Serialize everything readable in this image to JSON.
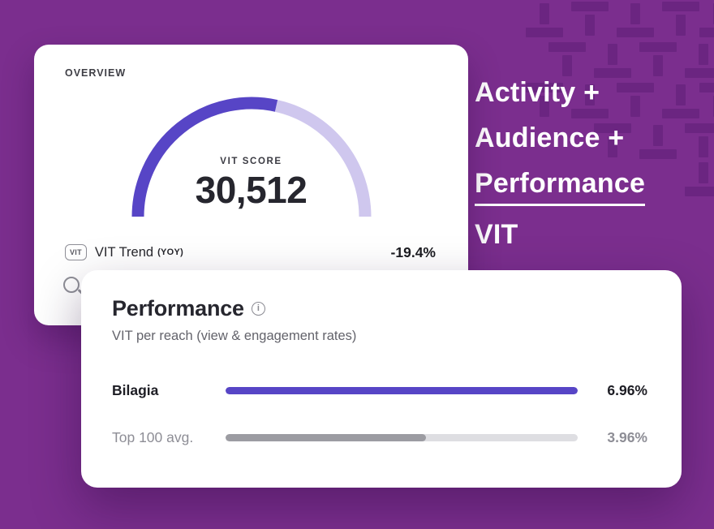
{
  "theme": {
    "background": "#7B2E8E",
    "pattern": "#6B2581",
    "accent_purple": "#5745C6",
    "gauge_rest": "#CFC7EE",
    "gray_fill": "#9C9CA2",
    "gray_track": "#DEDEE2"
  },
  "overview_card": {
    "header": "OVERVIEW",
    "score_label": "VIT SCORE",
    "score_value": "30,512",
    "trend_badge": "VIT",
    "trend_label": "VIT Trend",
    "trend_sublabel": "(YOY)",
    "trend_value": "-19.4%"
  },
  "headline": {
    "line1": "Activity +",
    "line2": "Audience +",
    "line3": "Performance",
    "line4": "VIT"
  },
  "performance_card": {
    "title": "Performance",
    "subtitle": "VIT per reach (view & engagement rates)",
    "rows": [
      {
        "label": "Bilagia",
        "value": "6.96%"
      },
      {
        "label": "Top 100 avg.",
        "value": "3.96%"
      }
    ]
  },
  "chart_data": [
    {
      "type": "gauge",
      "title": "VIT SCORE",
      "value": 30512,
      "value_display": "30,512",
      "fraction_filled": 0.57,
      "colors": {
        "filled": "#5745C6",
        "rest": "#CFC7EE"
      },
      "annotation": {
        "label": "VIT Trend (YOY)",
        "value_pct": -19.4,
        "value_display": "-19.4%"
      }
    },
    {
      "type": "bar",
      "orientation": "horizontal",
      "title": "Performance",
      "subtitle": "VIT per reach (view & engagement rates)",
      "categories": [
        "Bilagia",
        "Top 100 avg."
      ],
      "values": [
        6.96,
        3.96
      ],
      "value_display": [
        "6.96%",
        "3.96%"
      ],
      "unit": "%",
      "max": 6.96
    }
  ]
}
